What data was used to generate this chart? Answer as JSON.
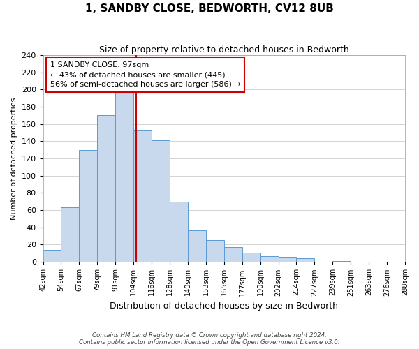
{
  "title": "1, SANDBY CLOSE, BEDWORTH, CV12 8UB",
  "subtitle": "Size of property relative to detached houses in Bedworth",
  "xlabel": "Distribution of detached houses by size in Bedworth",
  "ylabel": "Number of detached properties",
  "bin_labels": [
    "42sqm",
    "54sqm",
    "67sqm",
    "79sqm",
    "91sqm",
    "104sqm",
    "116sqm",
    "128sqm",
    "140sqm",
    "153sqm",
    "165sqm",
    "177sqm",
    "190sqm",
    "202sqm",
    "214sqm",
    "227sqm",
    "239sqm",
    "251sqm",
    "263sqm",
    "276sqm",
    "288sqm"
  ],
  "bar_heights": [
    14,
    63,
    130,
    170,
    200,
    153,
    141,
    70,
    37,
    25,
    17,
    11,
    7,
    6,
    4,
    0,
    1,
    0,
    0,
    0
  ],
  "bar_color": "#c8d9ee",
  "bar_edge_color": "#5b9bd5",
  "vline_color": "#cc0000",
  "vline_x_index": 4.65,
  "annotation_title": "1 SANDBY CLOSE: 97sqm",
  "annotation_line1": "← 43% of detached houses are smaller (445)",
  "annotation_line2": "56% of semi-detached houses are larger (586) →",
  "annotation_box_color": "#ffffff",
  "annotation_box_edge": "#cc0000",
  "ylim": [
    0,
    240
  ],
  "yticks": [
    0,
    20,
    40,
    60,
    80,
    100,
    120,
    140,
    160,
    180,
    200,
    220,
    240
  ],
  "footer_line1": "Contains HM Land Registry data © Crown copyright and database right 2024.",
  "footer_line2": "Contains public sector information licensed under the Open Government Licence v3.0.",
  "bg_color": "#ffffff",
  "grid_color": "#cccccc"
}
